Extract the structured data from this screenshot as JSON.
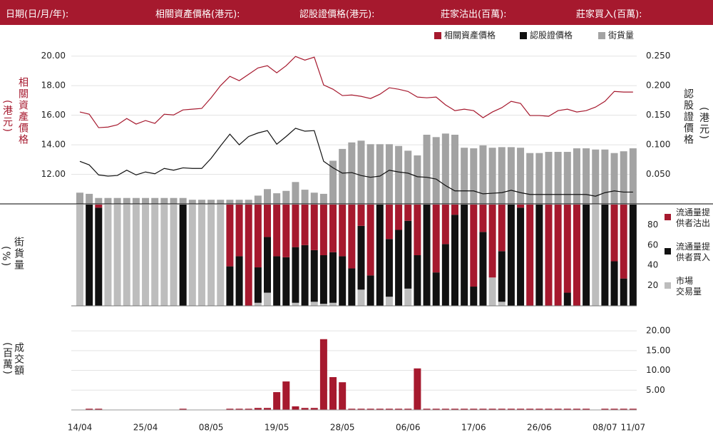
{
  "header": {
    "labels": [
      "日期(日/月/年):",
      "相關資產價格(港元):",
      "認股證價格(港元):",
      "莊家沽出(百萬):",
      "莊家買入(百萬):"
    ]
  },
  "chart_data": [
    {
      "type": "combo",
      "ylabel": "相關資產價格",
      "yunit": "(港元)",
      "y2label": "認股證價格",
      "y2unit": "(港元)",
      "ylim": [
        10,
        21
      ],
      "yticks": [
        {
          "value": 12,
          "label": "12.00"
        },
        {
          "value": 14,
          "label": "14.00"
        },
        {
          "value": 16,
          "label": "16.00"
        },
        {
          "value": 18,
          "label": "18.00"
        },
        {
          "value": 20,
          "label": "20.00"
        }
      ],
      "y2lim": [
        0,
        0.275
      ],
      "y2ticks": [
        {
          "value": 0.05,
          "label": "0.050"
        },
        {
          "value": 0.1,
          "label": "0.100"
        },
        {
          "value": 0.15,
          "label": "0.150"
        },
        {
          "value": 0.2,
          "label": "0.200"
        },
        {
          "value": 0.25,
          "label": "0.250"
        }
      ],
      "grid": true,
      "series": [
        {
          "name": "相關資產價格",
          "type": "line",
          "color": "#a6192e",
          "axis": "y",
          "values": [
            16.22,
            16.07,
            15.16,
            15.2,
            15.35,
            15.78,
            15.4,
            15.64,
            15.45,
            16.07,
            16.02,
            16.36,
            16.41,
            16.46,
            17.18,
            18.0,
            18.63,
            18.34,
            18.77,
            19.2,
            19.35,
            18.87,
            19.35,
            19.98,
            19.73,
            19.93,
            18.05,
            17.76,
            17.33,
            17.37,
            17.28,
            17.13,
            17.42,
            17.86,
            17.76,
            17.61,
            17.23,
            17.18,
            17.23,
            16.7,
            16.31,
            16.41,
            16.31,
            15.83,
            16.22,
            16.51,
            16.94,
            16.8,
            15.98,
            15.98,
            15.93,
            16.31,
            16.41,
            16.22,
            16.31,
            16.55,
            16.94,
            17.61,
            17.57,
            17.57
          ]
        },
        {
          "name": "認股證價格",
          "type": "line",
          "color": "#111111",
          "axis": "y2",
          "values": [
            0.072,
            0.066,
            0.049,
            0.047,
            0.048,
            0.057,
            0.049,
            0.054,
            0.051,
            0.06,
            0.057,
            0.061,
            0.06,
            0.06,
            0.077,
            0.098,
            0.118,
            0.1,
            0.114,
            0.12,
            0.124,
            0.101,
            0.114,
            0.128,
            0.123,
            0.124,
            0.072,
            0.061,
            0.052,
            0.053,
            0.048,
            0.045,
            0.047,
            0.057,
            0.054,
            0.052,
            0.046,
            0.045,
            0.042,
            0.031,
            0.022,
            0.022,
            0.022,
            0.017,
            0.018,
            0.019,
            0.023,
            0.019,
            0.016,
            0.016,
            0.016,
            0.016,
            0.016,
            0.016,
            0.016,
            0.013,
            0.019,
            0.022,
            0.02,
            0.02
          ]
        },
        {
          "name": "街貨量",
          "type": "bar",
          "color": "#a3a3a3",
          "axis": "y2",
          "values": [
            0.019,
            0.017,
            0.01,
            0.01,
            0.01,
            0.01,
            0.01,
            0.01,
            0.01,
            0.01,
            0.01,
            0.01,
            0.007,
            0.007,
            0.007,
            0.007,
            0.007,
            0.007,
            0.007,
            0.014,
            0.025,
            0.018,
            0.022,
            0.037,
            0.024,
            0.019,
            0.017,
            0.073,
            0.093,
            0.104,
            0.107,
            0.101,
            0.101,
            0.101,
            0.098,
            0.09,
            0.082,
            0.117,
            0.113,
            0.119,
            0.117,
            0.095,
            0.094,
            0.099,
            0.095,
            0.096,
            0.096,
            0.095,
            0.086,
            0.086,
            0.088,
            0.088,
            0.088,
            0.094,
            0.094,
            0.092,
            0.092,
            0.086,
            0.089,
            0.094
          ]
        }
      ]
    },
    {
      "type": "stacked_bar",
      "ylabel": "街貨量",
      "yunit": "(%)",
      "ylim": [
        0,
        100
      ],
      "yticks": [
        20,
        40,
        60,
        80
      ],
      "series": [
        {
          "name": "市場交易量",
          "color": "#bdbdbd",
          "values": [
            100,
            0,
            0,
            100,
            100,
            100,
            100,
            100,
            100,
            100,
            100,
            0,
            100,
            100,
            100,
            100,
            0,
            0,
            0,
            3,
            13,
            0,
            0,
            3,
            0,
            4,
            2,
            3,
            0,
            0,
            16,
            0,
            0,
            9,
            0,
            17,
            0,
            0,
            0,
            0,
            0,
            0,
            0,
            0,
            28,
            4,
            0,
            0,
            0,
            0,
            0,
            0,
            0,
            0,
            0,
            100,
            0,
            0,
            0,
            0
          ]
        },
        {
          "name": "流通量提供者買入",
          "color": "#111111",
          "values": [
            0,
            100,
            97,
            0,
            0,
            0,
            0,
            0,
            0,
            0,
            0,
            100,
            0,
            0,
            0,
            0,
            39,
            49,
            0,
            35,
            55,
            49,
            48,
            55,
            60,
            51,
            48,
            50,
            49,
            37,
            63,
            30,
            100,
            57,
            75,
            67,
            50,
            100,
            33,
            61,
            90,
            100,
            19,
            73,
            0,
            50,
            100,
            97,
            0,
            100,
            0,
            0,
            13,
            0,
            100,
            0,
            100,
            44,
            27,
            100
          ]
        },
        {
          "name": "流通量提供者沽出",
          "color": "#a6192e",
          "values": [
            0,
            0,
            3,
            0,
            0,
            0,
            0,
            0,
            0,
            0,
            0,
            0,
            0,
            0,
            0,
            0,
            61,
            51,
            100,
            62,
            32,
            51,
            52,
            42,
            40,
            45,
            50,
            47,
            51,
            63,
            21,
            70,
            0,
            34,
            25,
            16,
            50,
            0,
            67,
            39,
            10,
            0,
            81,
            27,
            72,
            46,
            0,
            3,
            100,
            0,
            100,
            100,
            87,
            100,
            0,
            0,
            0,
            56,
            73,
            0
          ]
        }
      ]
    },
    {
      "type": "bar",
      "ylabel": "成交額",
      "yunit": "(百萬)",
      "ylim": [
        0,
        22
      ],
      "yticks": [
        {
          "value": 5,
          "label": "5.00"
        },
        {
          "value": 10,
          "label": "10.00"
        },
        {
          "value": 15,
          "label": "15.00"
        },
        {
          "value": 20,
          "label": "20.00"
        }
      ],
      "color": "#a6192e",
      "categories": [
        "14/04",
        null,
        null,
        null,
        null,
        null,
        null,
        "25/04",
        null,
        null,
        null,
        null,
        null,
        null,
        "08/05",
        null,
        null,
        null,
        null,
        null,
        null,
        "19/05",
        null,
        null,
        null,
        null,
        null,
        null,
        "28/05",
        null,
        null,
        null,
        null,
        null,
        null,
        "06/06",
        null,
        null,
        null,
        null,
        null,
        null,
        "17/06",
        null,
        null,
        null,
        null,
        null,
        null,
        "26/06",
        null,
        null,
        null,
        null,
        null,
        null,
        "08/07",
        null,
        null,
        "11/07"
      ],
      "values": [
        0,
        0.3,
        0.3,
        0,
        0,
        0,
        0,
        0,
        0,
        0,
        0,
        0.3,
        0,
        0,
        0,
        0,
        0.3,
        0.3,
        0.3,
        0.5,
        0.5,
        4.5,
        7.2,
        0.9,
        0.5,
        0.5,
        17.9,
        8.3,
        7.0,
        0.3,
        0.3,
        0.3,
        0.3,
        0.3,
        0.3,
        0.3,
        10.5,
        0.3,
        0.3,
        0.3,
        0.3,
        0.3,
        0.3,
        0.3,
        0.3,
        0.3,
        0.3,
        0.3,
        0.3,
        0.3,
        0.3,
        0.3,
        0.3,
        0.3,
        0.3,
        0,
        0.3,
        0.3,
        0.3,
        0.3
      ]
    }
  ]
}
